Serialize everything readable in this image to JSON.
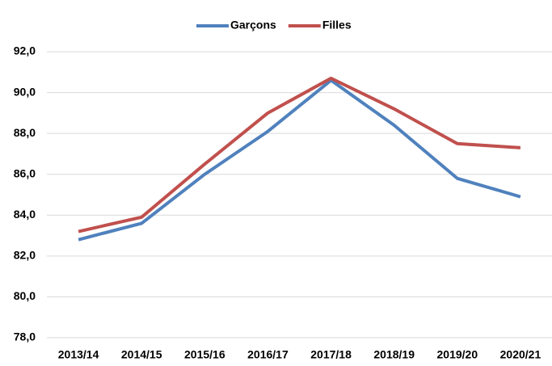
{
  "chart_data": {
    "type": "line",
    "categories": [
      "2013/14",
      "2014/15",
      "2015/16",
      "2016/17",
      "2017/18",
      "2018/19",
      "2019/20",
      "2020/21"
    ],
    "series": [
      {
        "name": "Garçons",
        "color": "#4f81bd",
        "values": [
          82.8,
          83.6,
          86.0,
          88.1,
          90.6,
          88.4,
          85.8,
          84.9
        ]
      },
      {
        "name": "Filles",
        "color": "#c0504d",
        "values": [
          83.2,
          83.9,
          86.5,
          89.0,
          90.7,
          89.2,
          87.5,
          87.3
        ]
      }
    ],
    "ylim": [
      78,
      92
    ],
    "yticks": [
      {
        "value": 78,
        "label": "78,0"
      },
      {
        "value": 80,
        "label": "80,0"
      },
      {
        "value": 82,
        "label": "82,0"
      },
      {
        "value": 84,
        "label": "84,0"
      },
      {
        "value": 86,
        "label": "86,0"
      },
      {
        "value": 88,
        "label": "88,0"
      },
      {
        "value": 90,
        "label": "90,0"
      },
      {
        "value": 92,
        "label": "92,0"
      }
    ],
    "grid": true,
    "legend": "top"
  }
}
